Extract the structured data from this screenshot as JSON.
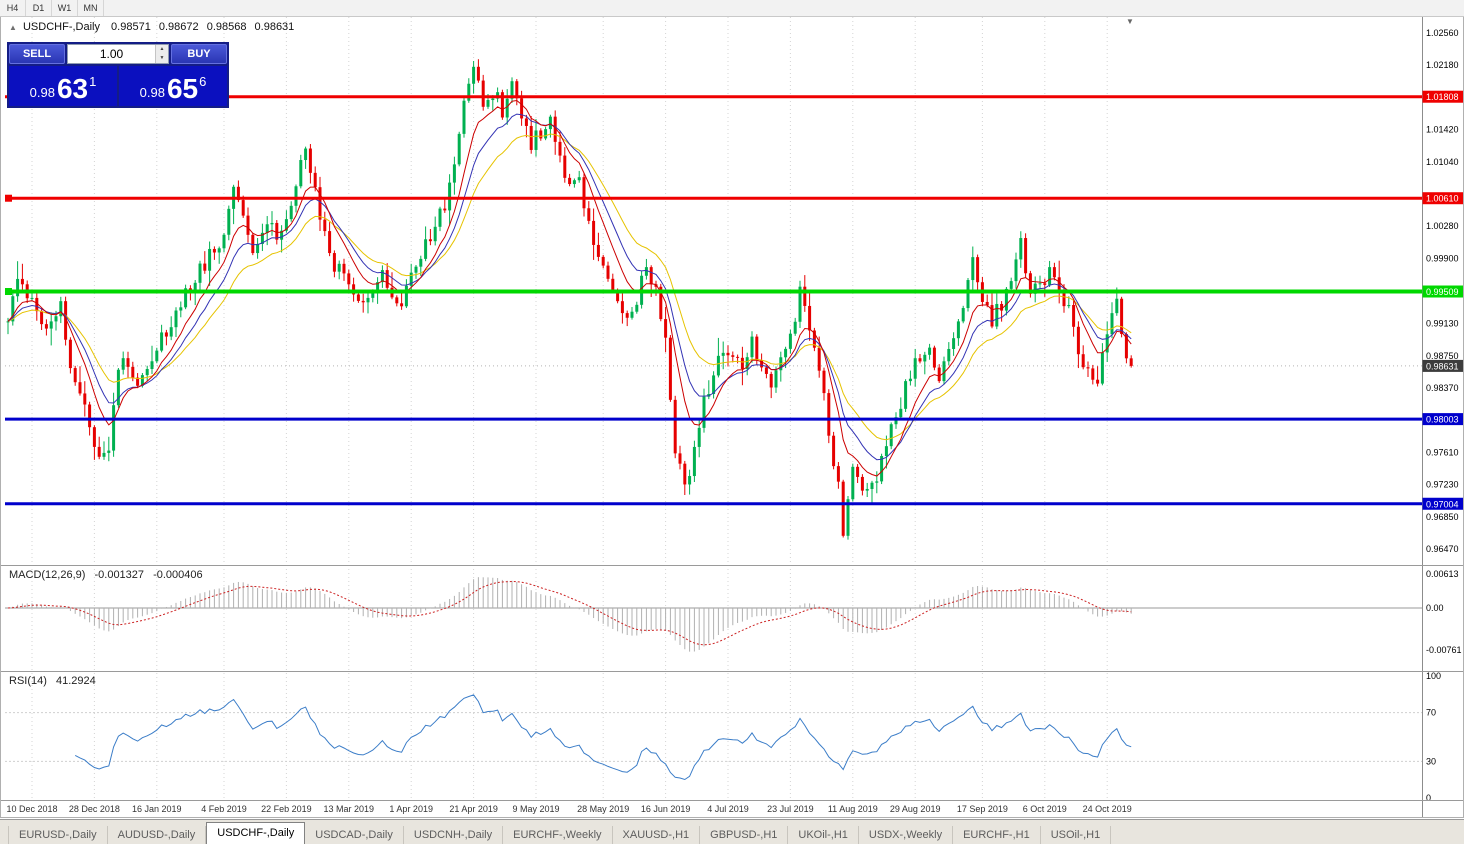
{
  "colors": {
    "candle_up": "#00b050",
    "candle_down": "#e60000",
    "ma_fast": "#cc0000",
    "ma_mid": "#3333b4",
    "ma_slow": "#e6c300",
    "macd_hist": "#b0b0b0",
    "macd_signal": "#cc2222",
    "rsi_line": "#3b7dc8",
    "last_price": "#3c3c3c"
  },
  "toolbar": {
    "timeframes": [
      "H4",
      "D1",
      "W1",
      "MN"
    ]
  },
  "chart_header": {
    "collapse_icon": "▲",
    "symbol_title": "USDCHF-,Daily",
    "open": "0.98571",
    "high": "0.98672",
    "low": "0.98568",
    "close": "0.98631"
  },
  "trade_panel": {
    "sell_label": "SELL",
    "buy_label": "BUY",
    "volume": "1.00",
    "spinner_up_icon": "▲",
    "spinner_down_icon": "▼",
    "sell_price": {
      "base": "0.98",
      "pips": "63",
      "point": "1"
    },
    "buy_price": {
      "base": "0.98",
      "pips": "65",
      "point": "6"
    }
  },
  "shift_marker": "▼",
  "chart_data": {
    "type": "candlestick",
    "symbol": "USDCHF",
    "timeframe": "Daily",
    "bars_total": 235,
    "last_close": 0.98631,
    "price_axis": {
      "anchor_top_price": 1.0256,
      "anchor_bottom_price": 0.9647,
      "scale_labels": [
        "1.02560",
        "1.02180",
        "1.01420",
        "1.01040",
        "1.00280",
        "0.99900",
        "0.99130",
        "0.98750",
        "0.98370",
        "0.97610",
        "0.97230",
        "0.96850",
        "0.96470"
      ]
    },
    "levels": [
      {
        "value": 1.01808,
        "label": "1.01808",
        "color": "#ef0000",
        "width": 3,
        "handle": false
      },
      {
        "value": 1.0061,
        "label": "1.00610",
        "color": "#ef0000",
        "width": 3,
        "handle": true
      },
      {
        "value": 0.99509,
        "label": "0.99509",
        "color": "#00d800",
        "width": 4,
        "handle": true
      },
      {
        "value": 0.98003,
        "label": "0.98003",
        "color": "#0000cc",
        "width": 3,
        "handle": false
      },
      {
        "value": 0.97004,
        "label": "0.97004",
        "color": "#0000cc",
        "width": 3,
        "handle": false
      }
    ],
    "last_price_tag": {
      "value": 0.98631,
      "label": "0.98631"
    },
    "x_ticks": [
      {
        "index": 5,
        "label": "10 Dec 2018"
      },
      {
        "index": 18,
        "label": "28 Dec 2018"
      },
      {
        "index": 31,
        "label": "16 Jan 2019"
      },
      {
        "index": 45,
        "label": "4 Feb 2019"
      },
      {
        "index": 58,
        "label": "22 Feb 2019"
      },
      {
        "index": 71,
        "label": "13 Mar 2019"
      },
      {
        "index": 84,
        "label": "1 Apr 2019"
      },
      {
        "index": 97,
        "label": "21 Apr 2019"
      },
      {
        "index": 110,
        "label": "9 May 2019"
      },
      {
        "index": 124,
        "label": "28 May 2019"
      },
      {
        "index": 137,
        "label": "16 Jun 2019"
      },
      {
        "index": 150,
        "label": "4 Jul 2019"
      },
      {
        "index": 163,
        "label": "23 Jul 2019"
      },
      {
        "index": 176,
        "label": "11 Aug 2019"
      },
      {
        "index": 189,
        "label": "29 Aug 2019"
      },
      {
        "index": 203,
        "label": "17 Sep 2019"
      },
      {
        "index": 216,
        "label": "6 Oct 2019"
      },
      {
        "index": 229,
        "label": "24 Oct 2019"
      }
    ],
    "waypoints": [
      [
        0,
        0.9915
      ],
      [
        2,
        0.9975
      ],
      [
        4,
        0.995
      ],
      [
        6,
        0.993
      ],
      [
        8,
        0.9905
      ],
      [
        11,
        0.993
      ],
      [
        13,
        0.987
      ],
      [
        16,
        0.9815
      ],
      [
        19,
        0.9745
      ],
      [
        21,
        0.9762
      ],
      [
        23,
        0.9855
      ],
      [
        25,
        0.9872
      ],
      [
        27,
        0.983
      ],
      [
        29,
        0.9865
      ],
      [
        31,
        0.989
      ],
      [
        34,
        0.9918
      ],
      [
        37,
        0.9945
      ],
      [
        40,
        0.9975
      ],
      [
        43,
        1.0
      ],
      [
        45,
        1.0012
      ],
      [
        47,
        1.0085
      ],
      [
        49,
        1.0035
      ],
      [
        51,
        0.9995
      ],
      [
        54,
        1.004
      ],
      [
        56,
        1.0018
      ],
      [
        58,
        1.0032
      ],
      [
        60,
        1.008
      ],
      [
        62,
        1.012
      ],
      [
        64,
        1.0068
      ],
      [
        66,
        1.002
      ],
      [
        68,
        0.9985
      ],
      [
        71,
        0.9952
      ],
      [
        73,
        0.993
      ],
      [
        76,
        0.9956
      ],
      [
        78,
        0.9976
      ],
      [
        80,
        0.995
      ],
      [
        82,
        0.994
      ],
      [
        84,
        0.998
      ],
      [
        86,
        1.0
      ],
      [
        88,
        1.0016
      ],
      [
        90,
        1.004
      ],
      [
        92,
        1.0072
      ],
      [
        94,
        1.014
      ],
      [
        96,
        1.02
      ],
      [
        97,
        1.0222
      ],
      [
        99,
        1.016
      ],
      [
        101,
        1.0186
      ],
      [
        103,
        1.0165
      ],
      [
        105,
        1.0206
      ],
      [
        107,
        1.016
      ],
      [
        109,
        1.0126
      ],
      [
        111,
        1.014
      ],
      [
        113,
        1.0152
      ],
      [
        115,
        1.0106
      ],
      [
        117,
        1.008
      ],
      [
        119,
        1.0092
      ],
      [
        121,
        1.0026
      ],
      [
        123,
        0.9986
      ],
      [
        125,
        0.996
      ],
      [
        127,
        0.9936
      ],
      [
        129,
        0.9916
      ],
      [
        131,
        0.9946
      ],
      [
        133,
        0.9986
      ],
      [
        135,
        0.9946
      ],
      [
        137,
        0.989
      ],
      [
        139,
        0.9766
      ],
      [
        141,
        0.9726
      ],
      [
        143,
        0.9762
      ],
      [
        145,
        0.982
      ],
      [
        147,
        0.9856
      ],
      [
        149,
        0.9886
      ],
      [
        151,
        0.9876
      ],
      [
        153,
        0.985
      ],
      [
        155,
        0.989
      ],
      [
        157,
        0.9862
      ],
      [
        159,
        0.984
      ],
      [
        161,
        0.9876
      ],
      [
        163,
        0.9906
      ],
      [
        165,
        0.9946
      ],
      [
        167,
        0.9906
      ],
      [
        169,
        0.9856
      ],
      [
        171,
        0.979
      ],
      [
        173,
        0.9716
      ],
      [
        174,
        0.9662
      ],
      [
        176,
        0.9746
      ],
      [
        178,
        0.9722
      ],
      [
        180,
        0.9726
      ],
      [
        182,
        0.9746
      ],
      [
        184,
        0.9786
      ],
      [
        186,
        0.982
      ],
      [
        188,
        0.9856
      ],
      [
        190,
        0.9876
      ],
      [
        192,
        0.9886
      ],
      [
        194,
        0.985
      ],
      [
        196,
        0.988
      ],
      [
        198,
        0.9916
      ],
      [
        200,
        0.9966
      ],
      [
        201,
        0.9986
      ],
      [
        203,
        0.9936
      ],
      [
        205,
        0.992
      ],
      [
        207,
        0.9936
      ],
      [
        209,
        0.9956
      ],
      [
        211,
        1.0006
      ],
      [
        213,
        0.9946
      ],
      [
        215,
        0.9956
      ],
      [
        217,
        0.9976
      ],
      [
        219,
        0.9956
      ],
      [
        221,
        0.993
      ],
      [
        223,
        0.988
      ],
      [
        225,
        0.9856
      ],
      [
        227,
        0.985
      ],
      [
        229,
        0.99
      ],
      [
        231,
        0.9936
      ],
      [
        233,
        0.9862
      ],
      [
        234,
        0.98631
      ]
    ],
    "moving_averages": [
      {
        "period": 21,
        "colorKey": "ma_slow"
      },
      {
        "period": 13,
        "colorKey": "ma_mid"
      },
      {
        "period": 8,
        "colorKey": "ma_fast"
      }
    ],
    "indicators": {
      "macd": {
        "label": "MACD(12,26,9)",
        "value_main": "-0.001327",
        "value_signal": "-0.000406",
        "fast": 12,
        "slow": 26,
        "signal": 9,
        "axis_labels": [
          {
            "value": 0.00613,
            "label": "0.00613"
          },
          {
            "value": 0,
            "label": "0.00"
          },
          {
            "value": -0.00761,
            "label": "-0.00761"
          }
        ]
      },
      "rsi": {
        "label": "RSI(14)",
        "value": "41.2924",
        "period": 14,
        "levels": [
          70,
          30
        ],
        "axis_labels": [
          {
            "value": 100,
            "label": "100"
          },
          {
            "value": 70,
            "label": "70"
          },
          {
            "value": 30,
            "label": "30"
          },
          {
            "value": 0,
            "label": "0"
          }
        ]
      }
    }
  },
  "bottom_tabs": {
    "items": [
      {
        "label": "EURUSD-,Daily",
        "active": false
      },
      {
        "label": "AUDUSD-,Daily",
        "active": false
      },
      {
        "label": "USDCHF-,Daily",
        "active": true
      },
      {
        "label": "USDCAD-,Daily",
        "active": false
      },
      {
        "label": "USDCNH-,Daily",
        "active": false
      },
      {
        "label": "EURCHF-,Weekly",
        "active": false
      },
      {
        "label": "XAUUSD-,H1",
        "active": false
      },
      {
        "label": "GBPUSD-,H1",
        "active": false
      },
      {
        "label": "UKOil-,H1",
        "active": false
      },
      {
        "label": "USDX-,Weekly",
        "active": false
      },
      {
        "label": "EURCHF-,H1",
        "active": false
      },
      {
        "label": "USOil-,H1",
        "active": false
      }
    ]
  }
}
